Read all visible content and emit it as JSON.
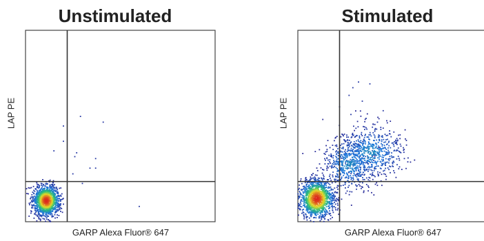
{
  "chart_data": [
    {
      "type": "scatter",
      "title": "Unstimulated",
      "xlabel": "GARP Alexa Fluor® 647",
      "ylabel": "LAP PE",
      "xlim": [
        0,
        1
      ],
      "ylim": [
        0,
        1
      ],
      "grid": false,
      "quadrant_gate": {
        "x": 0.22,
        "y": 0.21
      },
      "colormap": "density (blue to green to yellow to red)",
      "populations": [
        {
          "name": "",
          "center": [
            0.11,
            0.11
          ],
          "spread": [
            0.035,
            0.04
          ],
          "count": 1400
        }
      ],
      "outliers": [
        [
          0.29,
          0.55
        ],
        [
          0.41,
          0.52
        ],
        [
          0.2,
          0.5
        ],
        [
          0.27,
          0.36
        ],
        [
          0.26,
          0.34
        ],
        [
          0.37,
          0.33
        ],
        [
          0.34,
          0.28
        ],
        [
          0.37,
          0.28
        ],
        [
          0.25,
          0.25
        ],
        [
          0.3,
          0.2
        ],
        [
          0.6,
          0.08
        ],
        [
          0.2,
          0.42
        ],
        [
          0.15,
          0.37
        ]
      ]
    },
    {
      "type": "scatter",
      "title": "Stimulated",
      "xlabel": "GARP Alexa Fluor® 647",
      "ylabel": "LAP PE",
      "xlim": [
        0,
        1
      ],
      "ylim": [
        0,
        1
      ],
      "grid": false,
      "quadrant_gate": {
        "x": 0.22,
        "y": 0.21
      },
      "colormap": "density (blue to green to yellow to red)",
      "populations": [
        {
          "name": "",
          "center": [
            0.1,
            0.12
          ],
          "spread": [
            0.045,
            0.05
          ],
          "count": 1400
        },
        {
          "name": "",
          "center": [
            0.27,
            0.3
          ],
          "spread": [
            0.07,
            0.07
          ],
          "count": 500
        },
        {
          "name": "",
          "center": [
            0.38,
            0.36
          ],
          "spread": [
            0.09,
            0.07
          ],
          "count": 600
        }
      ],
      "outliers": [
        [
          0.27,
          0.66
        ],
        [
          0.32,
          0.73
        ],
        [
          0.38,
          0.72
        ],
        [
          0.28,
          0.56
        ],
        [
          0.36,
          0.54
        ],
        [
          0.22,
          0.6
        ],
        [
          0.34,
          0.63
        ],
        [
          0.29,
          0.7
        ],
        [
          0.45,
          0.58
        ],
        [
          0.42,
          0.52
        ]
      ]
    }
  ]
}
